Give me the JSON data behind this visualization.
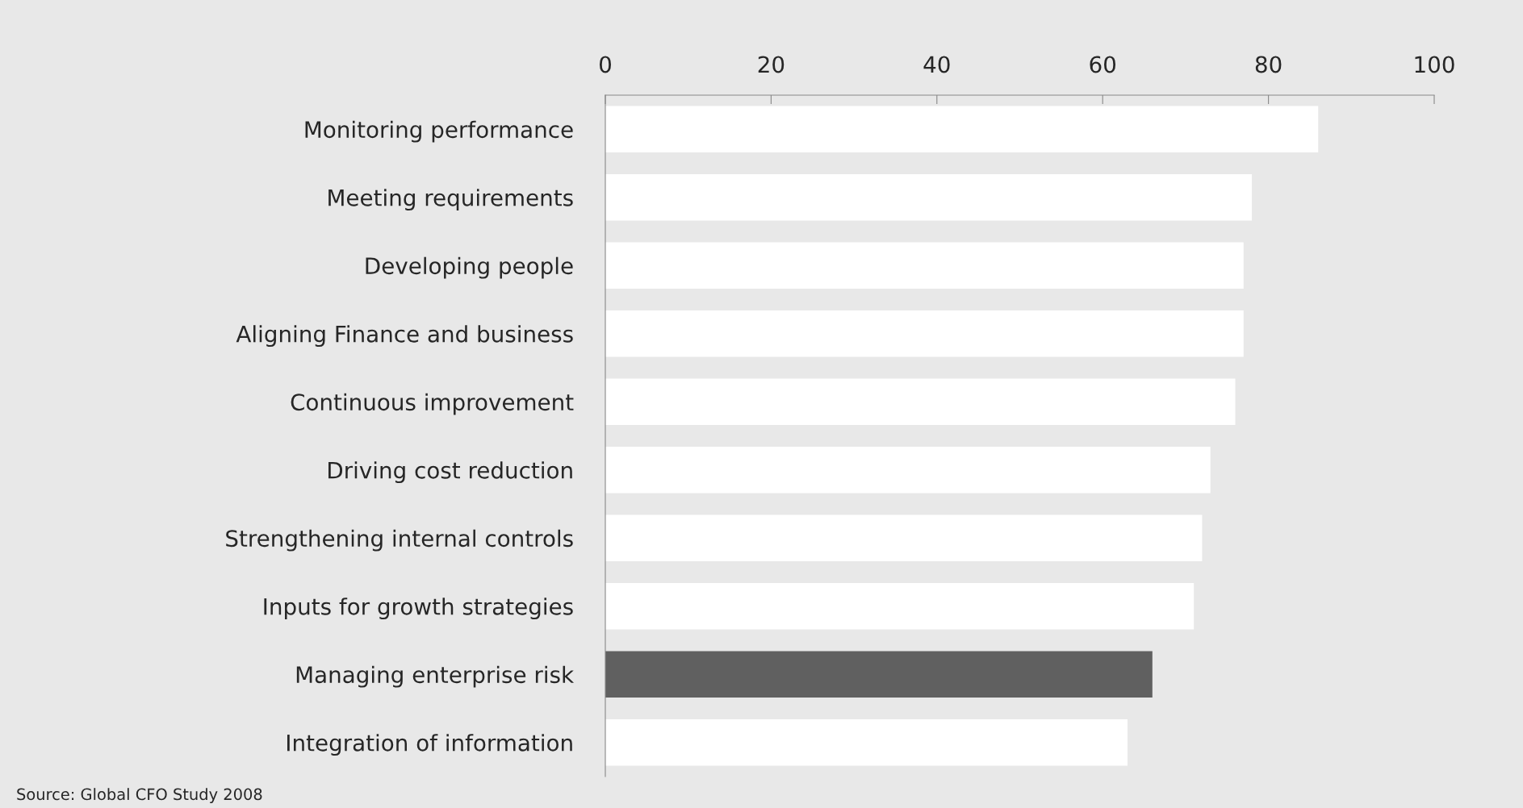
{
  "chart_data": {
    "type": "bar",
    "orientation": "horizontal",
    "categories": [
      "Monitoring performance",
      "Meeting requirements",
      "Developing people",
      "Aligning Finance and business",
      "Continuous improvement",
      "Driving cost reduction",
      "Strengthening internal controls",
      "Inputs for growth strategies",
      "Managing enterprise risk",
      "Integration of information"
    ],
    "values": [
      86,
      78,
      77,
      77,
      76,
      73,
      72,
      71,
      66,
      63
    ],
    "colors": [
      "#ffffff",
      "#ffffff",
      "#ffffff",
      "#ffffff",
      "#ffffff",
      "#ffffff",
      "#ffffff",
      "#ffffff",
      "#606060",
      "#ffffff"
    ],
    "xlim": [
      0,
      100
    ],
    "xticks": [
      0,
      20,
      40,
      60,
      80,
      100
    ],
    "grid": false,
    "legend": false,
    "annotations": [
      "Source: Global CFO Study 2008"
    ]
  }
}
